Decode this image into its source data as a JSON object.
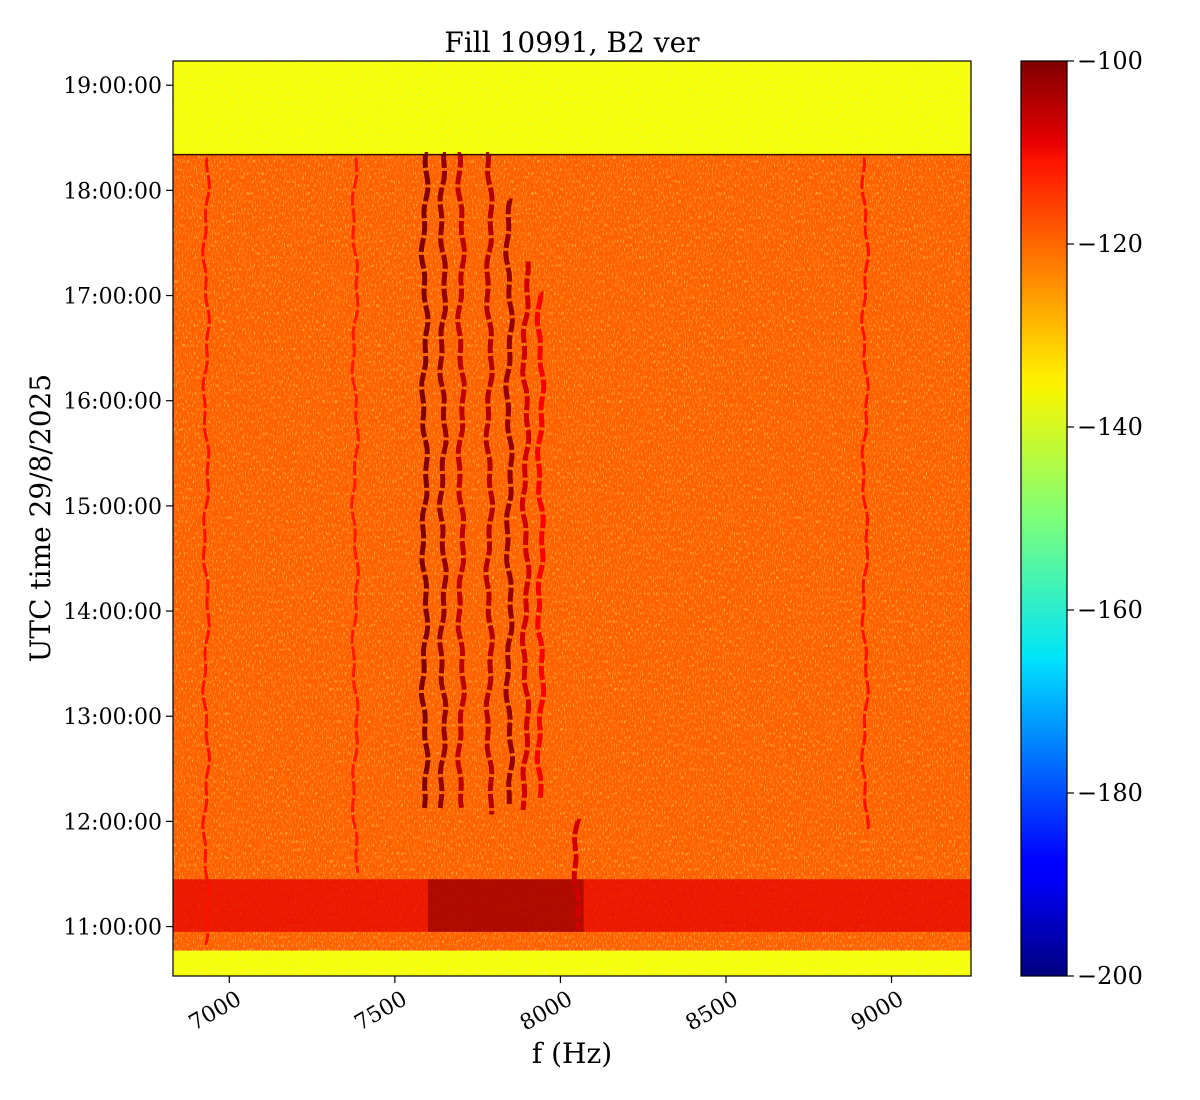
{
  "chart_data": {
    "type": "heatmap",
    "title": "Fill 10991, B2 ver",
    "xlabel": "f (Hz)",
    "ylabel": "UTC time 29/8/2025",
    "xlim": [
      6830,
      9240
    ],
    "ylim_hours": [
      10.53,
      19.23
    ],
    "x_ticks": [
      7000,
      7500,
      8000,
      8500,
      9000
    ],
    "x_tick_labels": [
      "7000",
      "7500",
      "8000",
      "8500",
      "9000"
    ],
    "y_ticks_hours": [
      11,
      12,
      13,
      14,
      15,
      16,
      17,
      18,
      19
    ],
    "y_tick_labels": [
      "11:00:00",
      "12:00:00",
      "13:00:00",
      "14:00:00",
      "15:00:00",
      "16:00:00",
      "17:00:00",
      "18:00:00",
      "19:00:00"
    ],
    "colorbar": {
      "colormap": "jet",
      "range": [
        -200,
        -100
      ],
      "ticks": [
        -100,
        -120,
        -140,
        -160,
        -180,
        -200
      ],
      "tick_labels": [
        "−100",
        "−120",
        "−140",
        "−160",
        "−180",
        "−200"
      ]
    },
    "background_regions": [
      {
        "time_from": 18.34,
        "time_to": 19.23,
        "level": -138
      },
      {
        "time_from": 10.77,
        "time_to": 18.34,
        "level": -122
      },
      {
        "time_from": 10.53,
        "time_to": 10.77,
        "level": -138
      }
    ],
    "burst_band": {
      "time_from": 10.95,
      "time_to": 11.45,
      "level": -110
    },
    "strong_lines": [
      {
        "freq": 7590,
        "time_from": 12.1,
        "time_to": 18.34,
        "level": -100
      },
      {
        "freq": 7645,
        "time_from": 12.1,
        "time_to": 18.34,
        "level": -102
      },
      {
        "freq": 7700,
        "time_from": 12.1,
        "time_to": 18.34,
        "level": -106
      },
      {
        "freq": 7785,
        "time_from": 12.05,
        "time_to": 18.34,
        "level": -105
      },
      {
        "freq": 7845,
        "time_from": 12.1,
        "time_to": 17.9,
        "level": -102
      },
      {
        "freq": 7895,
        "time_from": 12.1,
        "time_to": 17.3,
        "level": -108
      },
      {
        "freq": 7940,
        "time_from": 12.2,
        "time_to": 17.0,
        "level": -112
      },
      {
        "freq": 8050,
        "time_from": 10.95,
        "time_to": 12.0,
        "level": -108
      }
    ],
    "weak_lines": [
      {
        "freq": 6930,
        "time_from": 10.8,
        "time_to": 18.3,
        "level": -114
      },
      {
        "freq": 7380,
        "time_from": 11.5,
        "time_to": 18.3,
        "level": -115
      },
      {
        "freq": 8920,
        "time_from": 11.9,
        "time_to": 18.3,
        "level": -114
      }
    ]
  }
}
